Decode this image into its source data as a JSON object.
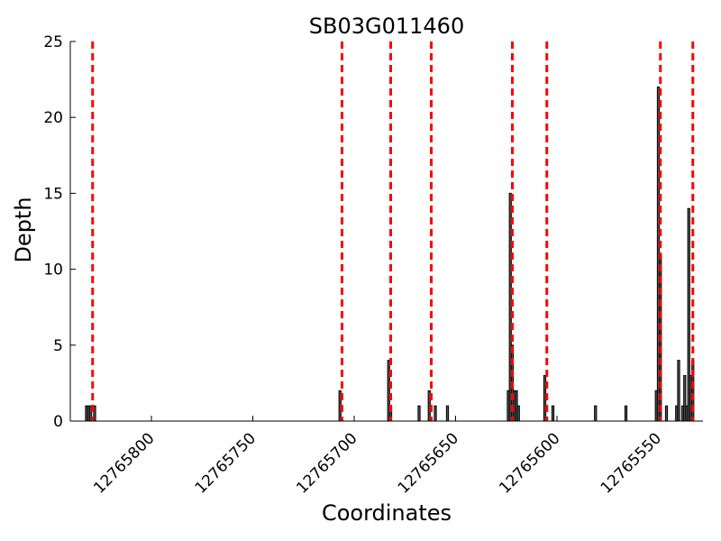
{
  "chart_data": {
    "type": "bar",
    "title": "SB03G011460",
    "xlabel": "Coordinates",
    "ylabel": "Depth",
    "x_reversed": true,
    "xlim": [
      12765840,
      12765528
    ],
    "ylim": [
      0,
      25
    ],
    "x_ticks": [
      12765800,
      12765750,
      12765700,
      12765650,
      12765600,
      12765550
    ],
    "x_tick_labels": [
      "12765800",
      "12765750",
      "12765700",
      "12765650",
      "12765600",
      "12765550"
    ],
    "y_ticks": [
      0,
      5,
      10,
      15,
      20,
      25
    ],
    "y_tick_labels": [
      "0",
      "5",
      "10",
      "15",
      "20",
      "25"
    ],
    "bar_color": "#000000",
    "bars": [
      {
        "x": 12765832,
        "y": 1
      },
      {
        "x": 12765831,
        "y": 1
      },
      {
        "x": 12765830,
        "y": 1
      },
      {
        "x": 12765828,
        "y": 1
      },
      {
        "x": 12765707,
        "y": 2
      },
      {
        "x": 12765683,
        "y": 4
      },
      {
        "x": 12765682,
        "y": 1
      },
      {
        "x": 12765668,
        "y": 1
      },
      {
        "x": 12765663,
        "y": 2
      },
      {
        "x": 12765660,
        "y": 1
      },
      {
        "x": 12765654,
        "y": 1
      },
      {
        "x": 12765624,
        "y": 2
      },
      {
        "x": 12765623,
        "y": 15
      },
      {
        "x": 12765622,
        "y": 5
      },
      {
        "x": 12765621,
        "y": 2
      },
      {
        "x": 12765620,
        "y": 2
      },
      {
        "x": 12765619,
        "y": 1
      },
      {
        "x": 12765606,
        "y": 3
      },
      {
        "x": 12765602,
        "y": 1
      },
      {
        "x": 12765581,
        "y": 1
      },
      {
        "x": 12765566,
        "y": 1
      },
      {
        "x": 12765551,
        "y": 2
      },
      {
        "x": 12765550,
        "y": 22
      },
      {
        "x": 12765549,
        "y": 11
      },
      {
        "x": 12765546,
        "y": 1
      },
      {
        "x": 12765541,
        "y": 1
      },
      {
        "x": 12765540,
        "y": 4
      },
      {
        "x": 12765538,
        "y": 1
      },
      {
        "x": 12765537,
        "y": 3
      },
      {
        "x": 12765536,
        "y": 1
      },
      {
        "x": 12765535,
        "y": 14
      },
      {
        "x": 12765534,
        "y": 3
      },
      {
        "x": 12765533,
        "y": 4
      }
    ],
    "markers": {
      "color": "#ff0000",
      "style": "dashed",
      "x": [
        12765829,
        12765706,
        12765682,
        12765662,
        12765622,
        12765605,
        12765549,
        12765533
      ]
    }
  }
}
